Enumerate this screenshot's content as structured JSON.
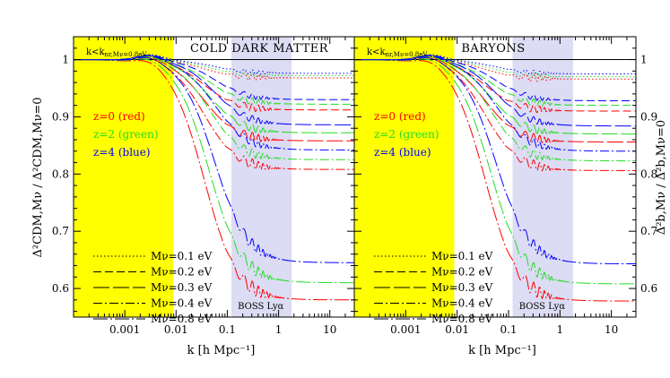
{
  "chart_data": {
    "type": "line",
    "x_scale": "log",
    "xlim": [
      0.0001,
      30
    ],
    "ylim": [
      0.55,
      1.04
    ],
    "x_ticks": [
      0.001,
      0.01,
      0.1,
      1,
      10
    ],
    "x_tick_labels": [
      "0.001",
      "0.01",
      "0.1",
      "1",
      "10"
    ],
    "y_ticks": [
      0.6,
      0.7,
      0.8,
      0.9,
      1.0
    ],
    "y_tick_labels": [
      "0.6",
      "0.7",
      "0.8",
      "0.9",
      "1"
    ],
    "xlabel": "k [h Mpc⁻¹]",
    "ylabel_left": "Δ²CDM,Mν / Δ²CDM,Mν=0",
    "ylabel_right": "Δ²b,Mν / Δ²b,Mν=0",
    "colors": {
      "z0": "#ff0000",
      "z2": "#22dd22",
      "z4": "#0000ff",
      "yellow_band": "#ffff00",
      "boss_band": "#dcdcf4"
    },
    "shaded_regions": {
      "nonrel_band": {
        "x": [
          0.0001,
          0.0088
        ],
        "label": "k<k",
        "label_sub": "nr,Mν=0.8eV"
      },
      "boss_band": {
        "x": [
          0.12,
          1.8
        ],
        "label": "BOSS Lyα"
      }
    },
    "redshift_legend": [
      {
        "text": "z=0 (red)",
        "color": "#ff0000"
      },
      {
        "text": "z=2 (green)",
        "color": "#22dd22"
      },
      {
        "text": "z=4 (blue)",
        "color": "#0000ff"
      }
    ],
    "mass_legend": [
      {
        "text": "Mν=0.1 eV",
        "dash": "1.5,2.5"
      },
      {
        "text": "Mν=0.2 eV",
        "dash": "9,4"
      },
      {
        "text": "Mν=0.3 eV",
        "dash": "18,4"
      },
      {
        "text": "Mν=0.4 eV",
        "dash": "10,3,2,3"
      },
      {
        "text": "Mν=0.8 eV",
        "dash": "16,3,2,3"
      }
    ],
    "panels": [
      {
        "title": "COLD DARK MATTER",
        "series": [
          {
            "mnu": 0.1,
            "z": 0,
            "plateau": 0.968,
            "osc": 0.006
          },
          {
            "mnu": 0.1,
            "z": 2,
            "plateau": 0.972,
            "osc": 0.005
          },
          {
            "mnu": 0.1,
            "z": 4,
            "plateau": 0.976,
            "osc": 0.004
          },
          {
            "mnu": 0.2,
            "z": 0,
            "plateau": 0.912,
            "osc": 0.007
          },
          {
            "mnu": 0.2,
            "z": 2,
            "plateau": 0.922,
            "osc": 0.006
          },
          {
            "mnu": 0.2,
            "z": 4,
            "plateau": 0.93,
            "osc": 0.005
          },
          {
            "mnu": 0.3,
            "z": 0,
            "plateau": 0.858,
            "osc": 0.008
          },
          {
            "mnu": 0.3,
            "z": 2,
            "plateau": 0.872,
            "osc": 0.007
          },
          {
            "mnu": 0.3,
            "z": 4,
            "plateau": 0.886,
            "osc": 0.006
          },
          {
            "mnu": 0.4,
            "z": 0,
            "plateau": 0.808,
            "osc": 0.009
          },
          {
            "mnu": 0.4,
            "z": 2,
            "plateau": 0.825,
            "osc": 0.008
          },
          {
            "mnu": 0.4,
            "z": 4,
            "plateau": 0.842,
            "osc": 0.007
          },
          {
            "mnu": 0.8,
            "z": 0,
            "plateau": 0.58,
            "osc": 0.012
          },
          {
            "mnu": 0.8,
            "z": 2,
            "plateau": 0.61,
            "osc": 0.011
          },
          {
            "mnu": 0.8,
            "z": 4,
            "plateau": 0.645,
            "osc": 0.01
          }
        ]
      },
      {
        "title": "BARYONS",
        "series": [
          {
            "mnu": 0.1,
            "z": 0,
            "plateau": 0.966,
            "osc": 0.006
          },
          {
            "mnu": 0.1,
            "z": 2,
            "plateau": 0.97,
            "osc": 0.005
          },
          {
            "mnu": 0.1,
            "z": 4,
            "plateau": 0.975,
            "osc": 0.004
          },
          {
            "mnu": 0.2,
            "z": 0,
            "plateau": 0.91,
            "osc": 0.007
          },
          {
            "mnu": 0.2,
            "z": 2,
            "plateau": 0.92,
            "osc": 0.006
          },
          {
            "mnu": 0.2,
            "z": 4,
            "plateau": 0.928,
            "osc": 0.005
          },
          {
            "mnu": 0.3,
            "z": 0,
            "plateau": 0.856,
            "osc": 0.008
          },
          {
            "mnu": 0.3,
            "z": 2,
            "plateau": 0.87,
            "osc": 0.007
          },
          {
            "mnu": 0.3,
            "z": 4,
            "plateau": 0.884,
            "osc": 0.006
          },
          {
            "mnu": 0.4,
            "z": 0,
            "plateau": 0.806,
            "osc": 0.009
          },
          {
            "mnu": 0.4,
            "z": 2,
            "plateau": 0.823,
            "osc": 0.008
          },
          {
            "mnu": 0.4,
            "z": 4,
            "plateau": 0.84,
            "osc": 0.007
          },
          {
            "mnu": 0.8,
            "z": 0,
            "plateau": 0.578,
            "osc": 0.012
          },
          {
            "mnu": 0.8,
            "z": 2,
            "plateau": 0.608,
            "osc": 0.011
          },
          {
            "mnu": 0.8,
            "z": 4,
            "plateau": 0.643,
            "osc": 0.01
          }
        ]
      }
    ]
  }
}
